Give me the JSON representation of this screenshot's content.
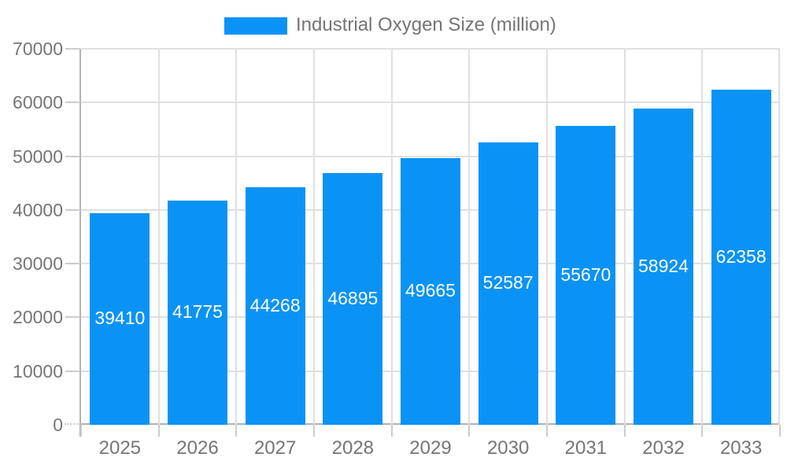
{
  "chart_data": {
    "type": "bar",
    "title": "",
    "legend": {
      "label": "Industrial Oxygen Size (million)",
      "position": "top"
    },
    "categories": [
      "2025",
      "2026",
      "2027",
      "2028",
      "2029",
      "2030",
      "2031",
      "2032",
      "2033"
    ],
    "series": [
      {
        "name": "Industrial Oxygen Size (million)",
        "values": [
          39410,
          41775,
          44268,
          46895,
          49665,
          52587,
          55670,
          58924,
          62358
        ]
      }
    ],
    "xlabel": "",
    "ylabel": "",
    "ylim": [
      0,
      70000
    ],
    "y_ticks": [
      0,
      10000,
      20000,
      30000,
      40000,
      50000,
      60000,
      70000
    ],
    "grid": true,
    "legend_position": "top",
    "colors": {
      "bar": "#0a93f5",
      "annotation_text": "#ffffff",
      "axis_text": "#757575",
      "gridline": "#e0e0e0",
      "tick": "#cccccc",
      "axis_line": "#b3b3b3",
      "background": "#ffffff"
    }
  }
}
